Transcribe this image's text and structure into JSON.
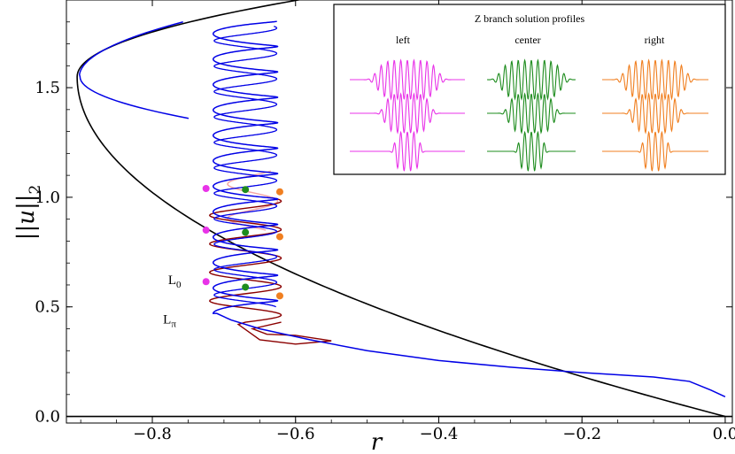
{
  "chart_data": {
    "type": "line",
    "title": "",
    "xlabel": "r",
    "ylabel_parts": [
      "||",
      "u",
      "||",
      "2"
    ],
    "xlim": [
      -0.92,
      0.01
    ],
    "ylim": [
      -0.03,
      1.9
    ],
    "xticks": [
      {
        "value": -0.8,
        "label": "−0.8"
      },
      {
        "value": -0.6,
        "label": "−0.6"
      },
      {
        "value": -0.4,
        "label": "−0.4"
      },
      {
        "value": -0.2,
        "label": "−0.2"
      },
      {
        "value": 0.0,
        "label": "0.0"
      }
    ],
    "yticks": [
      {
        "value": 0.0,
        "label": "0.0"
      },
      {
        "value": 0.5,
        "label": "0.5"
      },
      {
        "value": 1.0,
        "label": "1.0"
      },
      {
        "value": 1.5,
        "label": "1.5"
      }
    ],
    "colors": {
      "black_branch": "#000000",
      "snake": "#0000e6",
      "ladder": "#8b0000",
      "ladder_light": "#f4a6a6",
      "left": "#e833e8",
      "center": "#1e8c1e",
      "right": "#f07f20"
    },
    "black_branch": {
      "turn_r": -0.905,
      "turn_u": 1.55,
      "upper_end": [
        -0.56,
        1.92
      ],
      "lower_end": [
        0.0,
        0.0
      ]
    },
    "snake": {
      "tail": [
        [
          0.0,
          0.09
        ],
        [
          -0.02,
          0.12
        ],
        [
          -0.05,
          0.16
        ],
        [
          -0.1,
          0.18
        ],
        [
          -0.2,
          0.2
        ],
        [
          -0.3,
          0.225
        ],
        [
          -0.4,
          0.255
        ],
        [
          -0.5,
          0.3
        ],
        [
          -0.58,
          0.35
        ],
        [
          -0.65,
          0.4
        ],
        [
          -0.69,
          0.44
        ],
        [
          -0.71,
          0.47
        ]
      ],
      "left_r": -0.715,
      "right_r": -0.625,
      "lower_left_u": 0.47,
      "period": 0.116,
      "top_u": 1.8
    },
    "ladder": {
      "path": [
        [
          -0.62,
          0.43
        ],
        [
          -0.66,
          0.4
        ],
        [
          -0.64,
          0.375
        ],
        [
          -0.6,
          0.37
        ],
        [
          -0.55,
          0.345
        ],
        [
          -0.6,
          0.33
        ],
        [
          -0.65,
          0.35
        ],
        [
          -0.68,
          0.42
        ]
      ],
      "rungs_u": [
        0.55,
        0.68,
        0.82,
        0.95
      ]
    },
    "points": {
      "left": [
        [
          -0.725,
          0.615
        ],
        [
          -0.725,
          0.85
        ],
        [
          -0.725,
          1.04
        ]
      ],
      "center": [
        [
          -0.67,
          0.59
        ],
        [
          -0.67,
          0.84
        ],
        [
          -0.67,
          1.035
        ]
      ],
      "right": [
        [
          -0.622,
          0.55
        ],
        [
          -0.622,
          0.82
        ],
        [
          -0.622,
          1.025
        ]
      ]
    },
    "annotations": [
      {
        "main": "L",
        "sub": "0",
        "r": -0.778,
        "u": 0.62
      },
      {
        "main": "L",
        "sub": "π",
        "r": -0.785,
        "u": 0.44
      }
    ],
    "inset": {
      "title": "Z branch solution profiles",
      "columns": [
        {
          "label": "left",
          "color": "#e833e8"
        },
        {
          "label": "center",
          "color": "#1e8c1e"
        },
        {
          "label": "right",
          "color": "#f07f20"
        }
      ],
      "rows_envelope_widths": [
        6,
        4.5,
        2.5
      ]
    }
  }
}
